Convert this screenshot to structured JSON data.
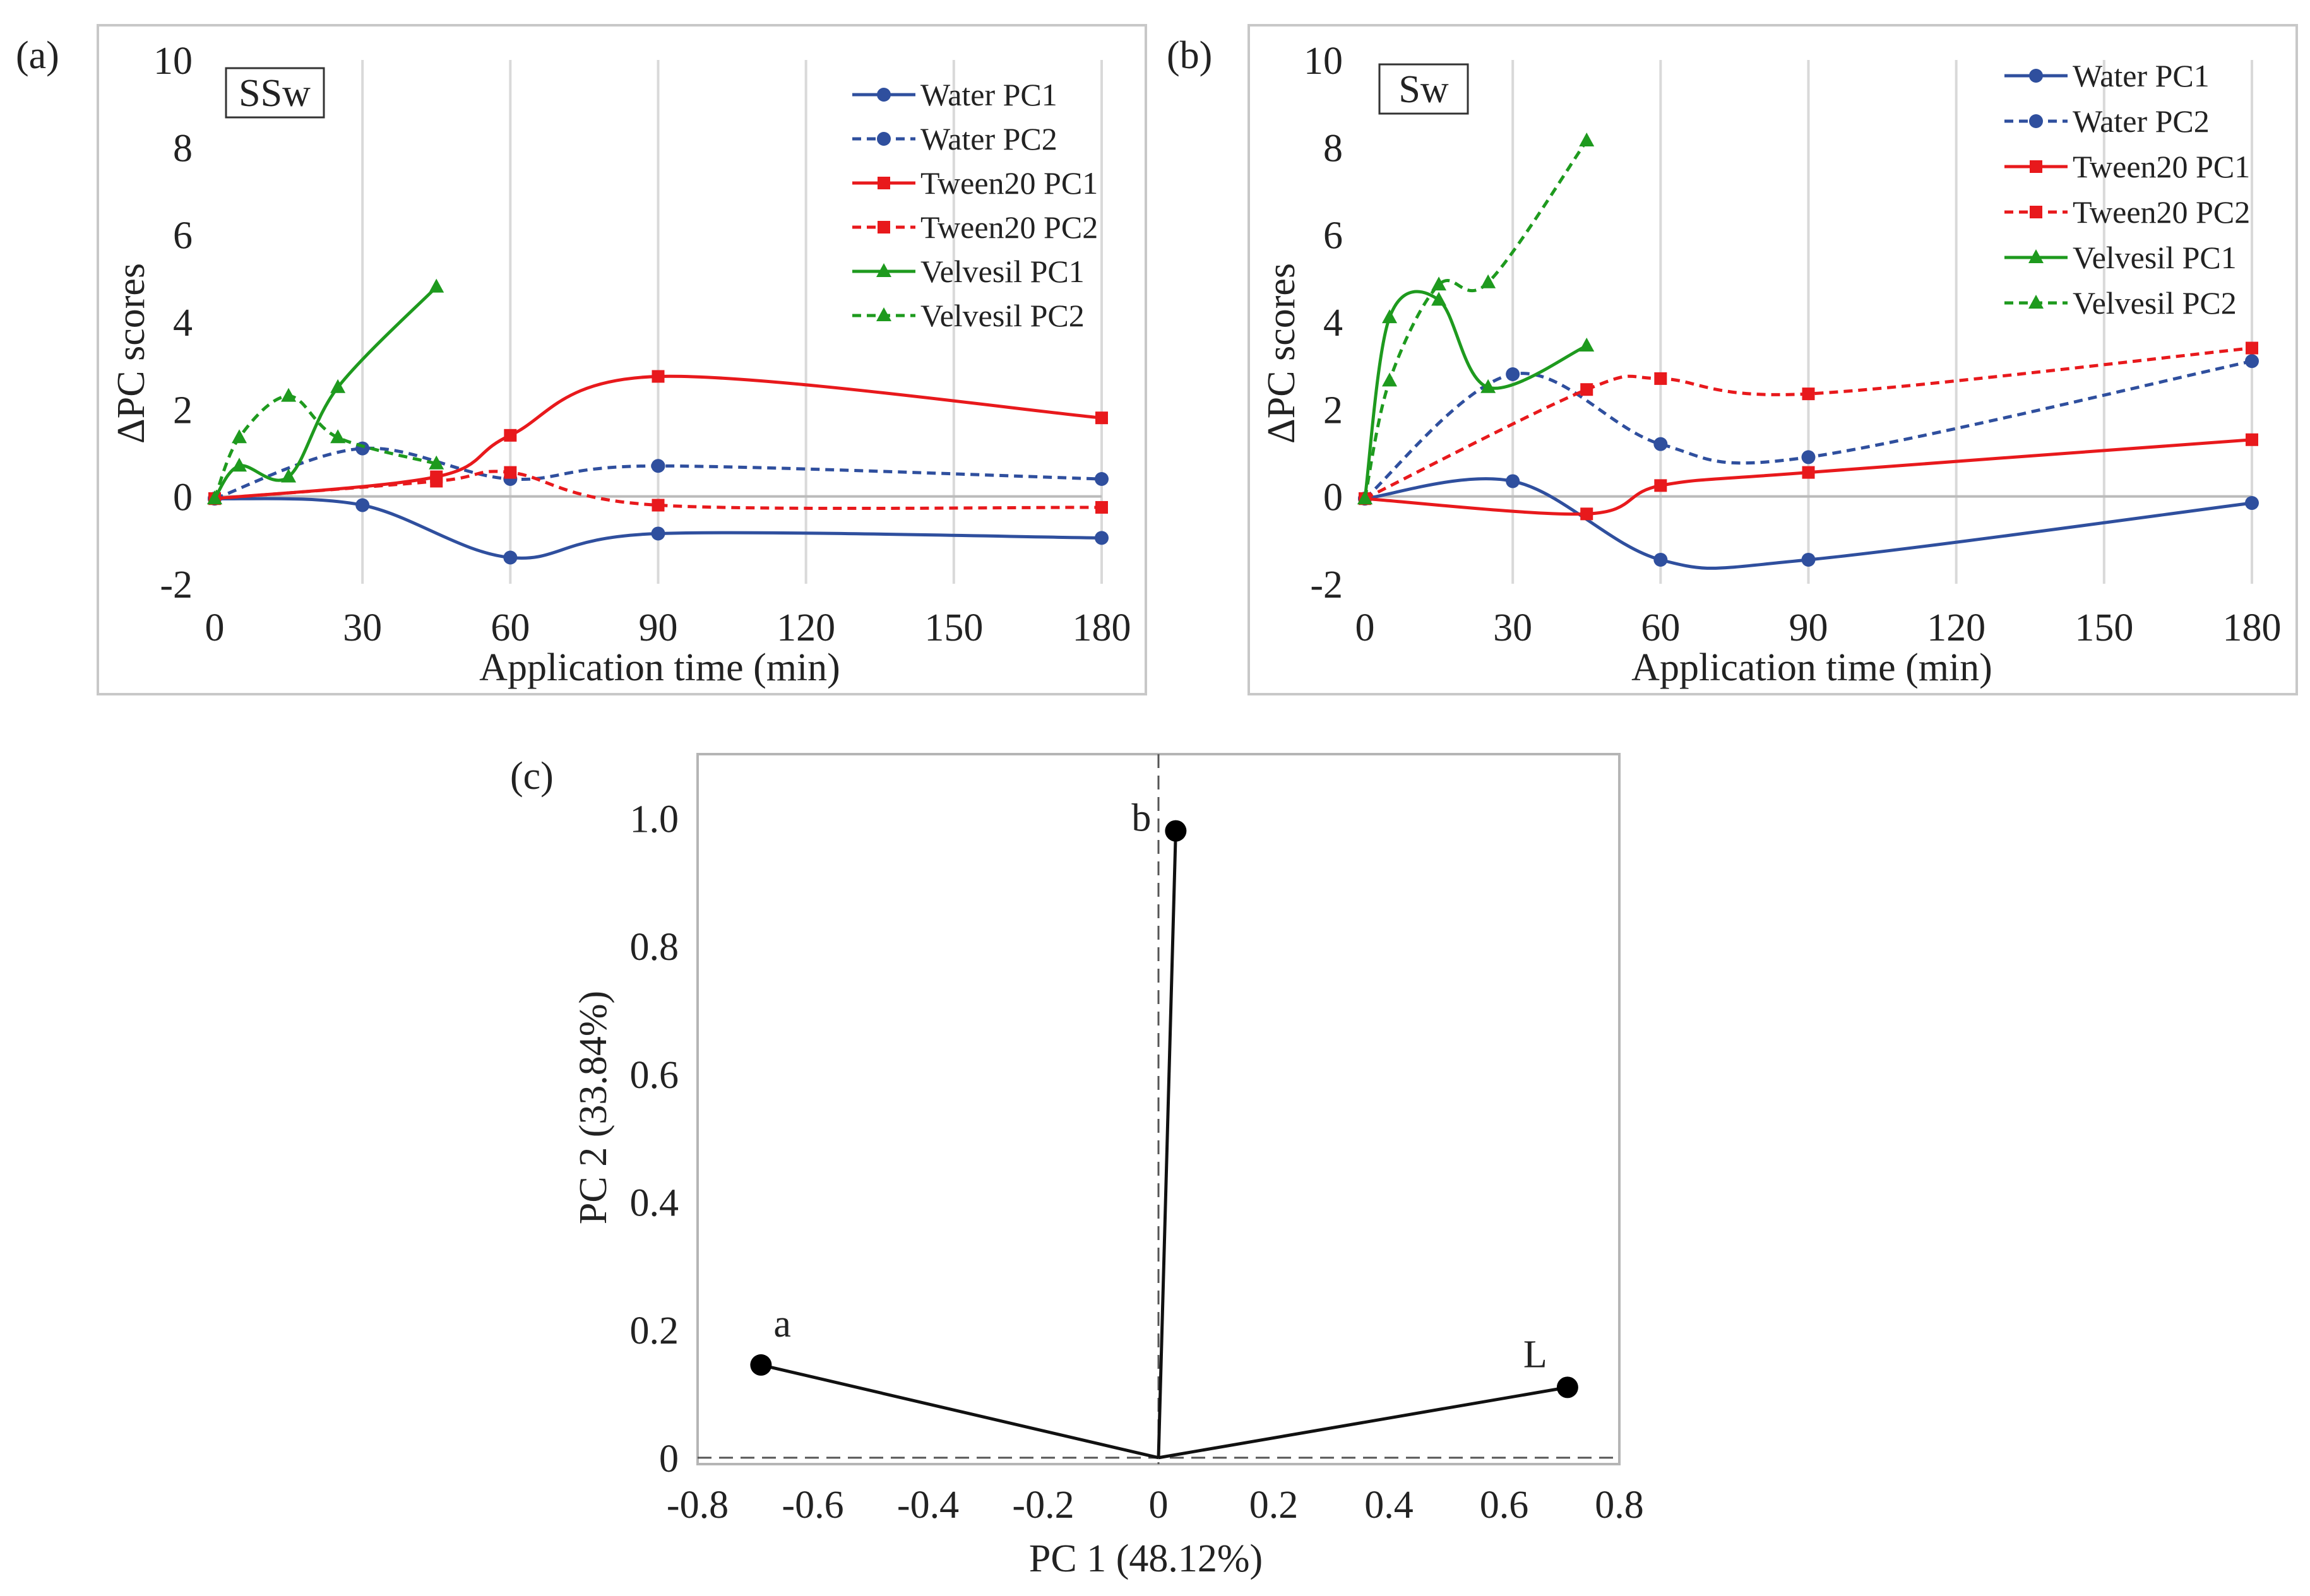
{
  "chart_data": [
    {
      "type": "line",
      "panel_label": "(a)",
      "box_label": "SSw",
      "xlabel": "Application time (min)",
      "ylabel": "ΔPC scores",
      "xlim": [
        0,
        180
      ],
      "ylim": [
        -2,
        10
      ],
      "x_ticks": [
        "0",
        "30",
        "60",
        "90",
        "120",
        "150",
        "180"
      ],
      "y_ticks": [
        "-2",
        "0",
        "2",
        "4",
        "6",
        "8",
        "10"
      ],
      "grid": "vertical",
      "legend_position": "top-right",
      "series": [
        {
          "name": "Water PC1",
          "color": "#2f4f9e",
          "dash": false,
          "marker": "circle",
          "x": [
            0,
            30,
            60,
            90,
            180
          ],
          "y": [
            -0.05,
            -0.2,
            -1.4,
            -0.85,
            -0.95
          ]
        },
        {
          "name": "Water PC2",
          "color": "#2f4f9e",
          "dash": true,
          "marker": "circle",
          "x": [
            0,
            30,
            60,
            90,
            180
          ],
          "y": [
            -0.05,
            1.1,
            0.4,
            0.7,
            0.4
          ]
        },
        {
          "name": "Tween20 PC1",
          "color": "#e8191c",
          "dash": false,
          "marker": "square",
          "x": [
            0,
            45,
            60,
            90,
            180
          ],
          "y": [
            -0.05,
            0.45,
            1.4,
            2.75,
            1.8
          ]
        },
        {
          "name": "Tween20 PC2",
          "color": "#e8191c",
          "dash": true,
          "marker": "square",
          "x": [
            0,
            45,
            60,
            90,
            180
          ],
          "y": [
            -0.05,
            0.35,
            0.55,
            -0.2,
            -0.25
          ]
        },
        {
          "name": "Velvesil PC1",
          "color": "#1e9a1e",
          "dash": false,
          "marker": "triangle",
          "x": [
            0,
            5,
            15,
            25,
            45
          ],
          "y": [
            -0.05,
            0.7,
            0.45,
            2.5,
            4.8
          ]
        },
        {
          "name": "Velvesil PC2",
          "color": "#1e9a1e",
          "dash": true,
          "marker": "triangle",
          "x": [
            0,
            5,
            15,
            25,
            45
          ],
          "y": [
            -0.05,
            1.35,
            2.3,
            1.35,
            0.75
          ]
        }
      ]
    },
    {
      "type": "line",
      "panel_label": "(b)",
      "box_label": "Sw",
      "xlabel": "Application time (min)",
      "ylabel": "ΔPC scores",
      "xlim": [
        0,
        180
      ],
      "ylim": [
        -2,
        10
      ],
      "x_ticks": [
        "0",
        "30",
        "60",
        "90",
        "120",
        "150",
        "180"
      ],
      "y_ticks": [
        "-2",
        "0",
        "2",
        "4",
        "6",
        "8",
        "10"
      ],
      "grid": "vertical",
      "legend_position": "top-right",
      "series": [
        {
          "name": "Water PC1",
          "color": "#2f4f9e",
          "dash": false,
          "marker": "circle",
          "x": [
            0,
            30,
            60,
            90,
            180
          ],
          "y": [
            -0.05,
            0.35,
            -1.45,
            -1.45,
            -0.15
          ]
        },
        {
          "name": "Water PC2",
          "color": "#2f4f9e",
          "dash": true,
          "marker": "circle",
          "x": [
            0,
            30,
            60,
            90,
            180
          ],
          "y": [
            -0.05,
            2.8,
            1.2,
            0.9,
            3.1
          ]
        },
        {
          "name": "Tween20 PC1",
          "color": "#e8191c",
          "dash": false,
          "marker": "square",
          "x": [
            0,
            45,
            60,
            90,
            180
          ],
          "y": [
            -0.05,
            -0.4,
            0.25,
            0.55,
            1.3
          ]
        },
        {
          "name": "Tween20 PC2",
          "color": "#e8191c",
          "dash": true,
          "marker": "square",
          "x": [
            0,
            45,
            60,
            90,
            180
          ],
          "y": [
            -0.05,
            2.45,
            2.7,
            2.35,
            3.4
          ]
        },
        {
          "name": "Velvesil PC1",
          "color": "#1e9a1e",
          "dash": false,
          "marker": "triangle",
          "x": [
            0,
            5,
            15,
            25,
            45
          ],
          "y": [
            -0.05,
            4.1,
            4.5,
            2.5,
            3.45
          ]
        },
        {
          "name": "Velvesil PC2",
          "color": "#1e9a1e",
          "dash": true,
          "marker": "triangle",
          "x": [
            0,
            5,
            15,
            25,
            45
          ],
          "y": [
            -0.05,
            2.65,
            4.85,
            4.9,
            8.15
          ]
        }
      ]
    },
    {
      "type": "scatter",
      "panel_label": "(c)",
      "xlabel": "PC 1 (48.12%)",
      "ylabel": "PC 2 (33.84%)",
      "xlim": [
        -0.8,
        0.8
      ],
      "ylim": [
        -0.01,
        1.1
      ],
      "x_ticks": [
        "-0.8",
        "-0.6",
        "-0.4",
        "-0.2",
        "0",
        "0.2",
        "0.4",
        "0.6",
        "0.8"
      ],
      "y_ticks": [
        "0",
        "0.2",
        "0.4",
        "0.6",
        "0.8",
        "1.0"
      ],
      "grid": false,
      "points": [
        {
          "label": "a",
          "x": -0.69,
          "y": 0.145
        },
        {
          "label": "b",
          "x": 0.03,
          "y": 0.98
        },
        {
          "label": "L",
          "x": 0.71,
          "y": 0.11
        }
      ]
    }
  ]
}
